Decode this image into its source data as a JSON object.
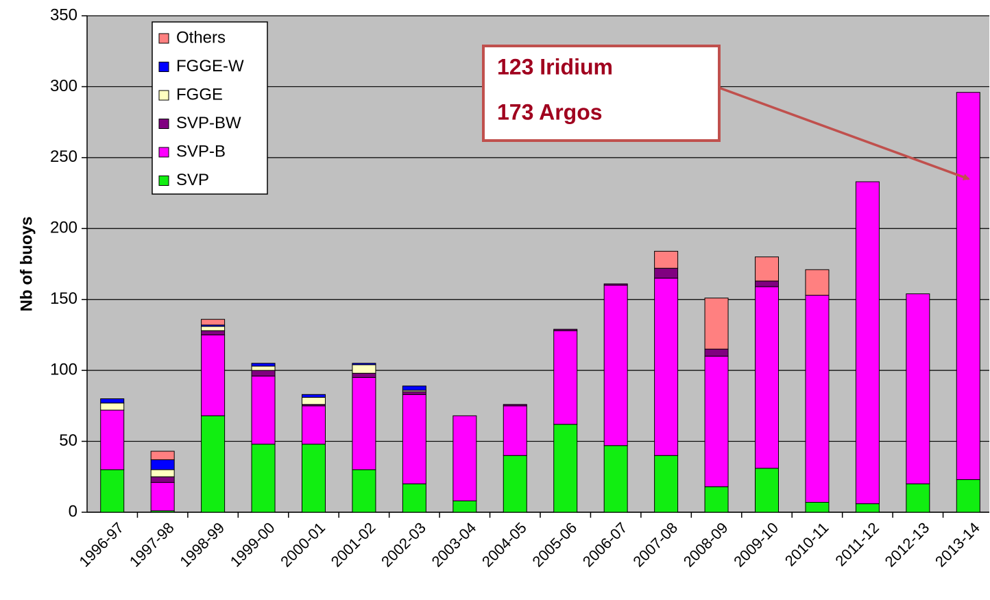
{
  "chart_data": {
    "type": "stacked_bar",
    "y_label": "Nb of buoys",
    "categories": [
      "1996-97",
      "1997-98",
      "1998-99",
      "1999-00",
      "2000-01",
      "2001-02",
      "2002-03",
      "2003-04",
      "2004-05",
      "2005-06",
      "2006-07",
      "2007-08",
      "2008-09",
      "2009-10",
      "2010-11",
      "2011-12",
      "2012-13",
      "2013-14"
    ],
    "series": [
      {
        "name": "SVP",
        "color": "#11ee11",
        "values": [
          30,
          1,
          68,
          48,
          48,
          30,
          20,
          8,
          40,
          62,
          47,
          40,
          18,
          31,
          7,
          6,
          20,
          23
        ]
      },
      {
        "name": "SVP-B",
        "color": "#ff00ff",
        "values": [
          42,
          20,
          57,
          48,
          27,
          65,
          63,
          60,
          35,
          66,
          113,
          125,
          92,
          128,
          146,
          227,
          134,
          273
        ]
      },
      {
        "name": "SVP-BW",
        "color": "#800080",
        "values": [
          0,
          4,
          3,
          4,
          1,
          3,
          2,
          0,
          1,
          1,
          1,
          7,
          5,
          4,
          0,
          0,
          0,
          0
        ]
      },
      {
        "name": "FGGE",
        "color": "#ffffc0",
        "values": [
          5,
          5,
          3,
          3,
          5,
          6,
          1,
          0,
          0,
          0,
          0,
          0,
          0,
          0,
          0,
          0,
          0,
          0
        ]
      },
      {
        "name": "FGGE-W",
        "color": "#0000ff",
        "values": [
          3,
          7,
          1,
          2,
          2,
          1,
          3,
          0,
          0,
          0,
          0,
          0,
          0,
          0,
          0,
          0,
          0,
          0
        ]
      },
      {
        "name": "Others",
        "color": "#ff8080",
        "values": [
          0,
          6,
          4,
          0,
          0,
          0,
          0,
          0,
          0,
          0,
          0,
          12,
          36,
          17,
          18,
          0,
          0,
          0
        ]
      }
    ],
    "ylim": [
      0,
      350
    ],
    "yticks": [
      0,
      50,
      100,
      150,
      200,
      250,
      300,
      350
    ],
    "grid": true,
    "legend": "upper left",
    "annotations": [
      "123 Iridium",
      "173 Argos"
    ]
  }
}
